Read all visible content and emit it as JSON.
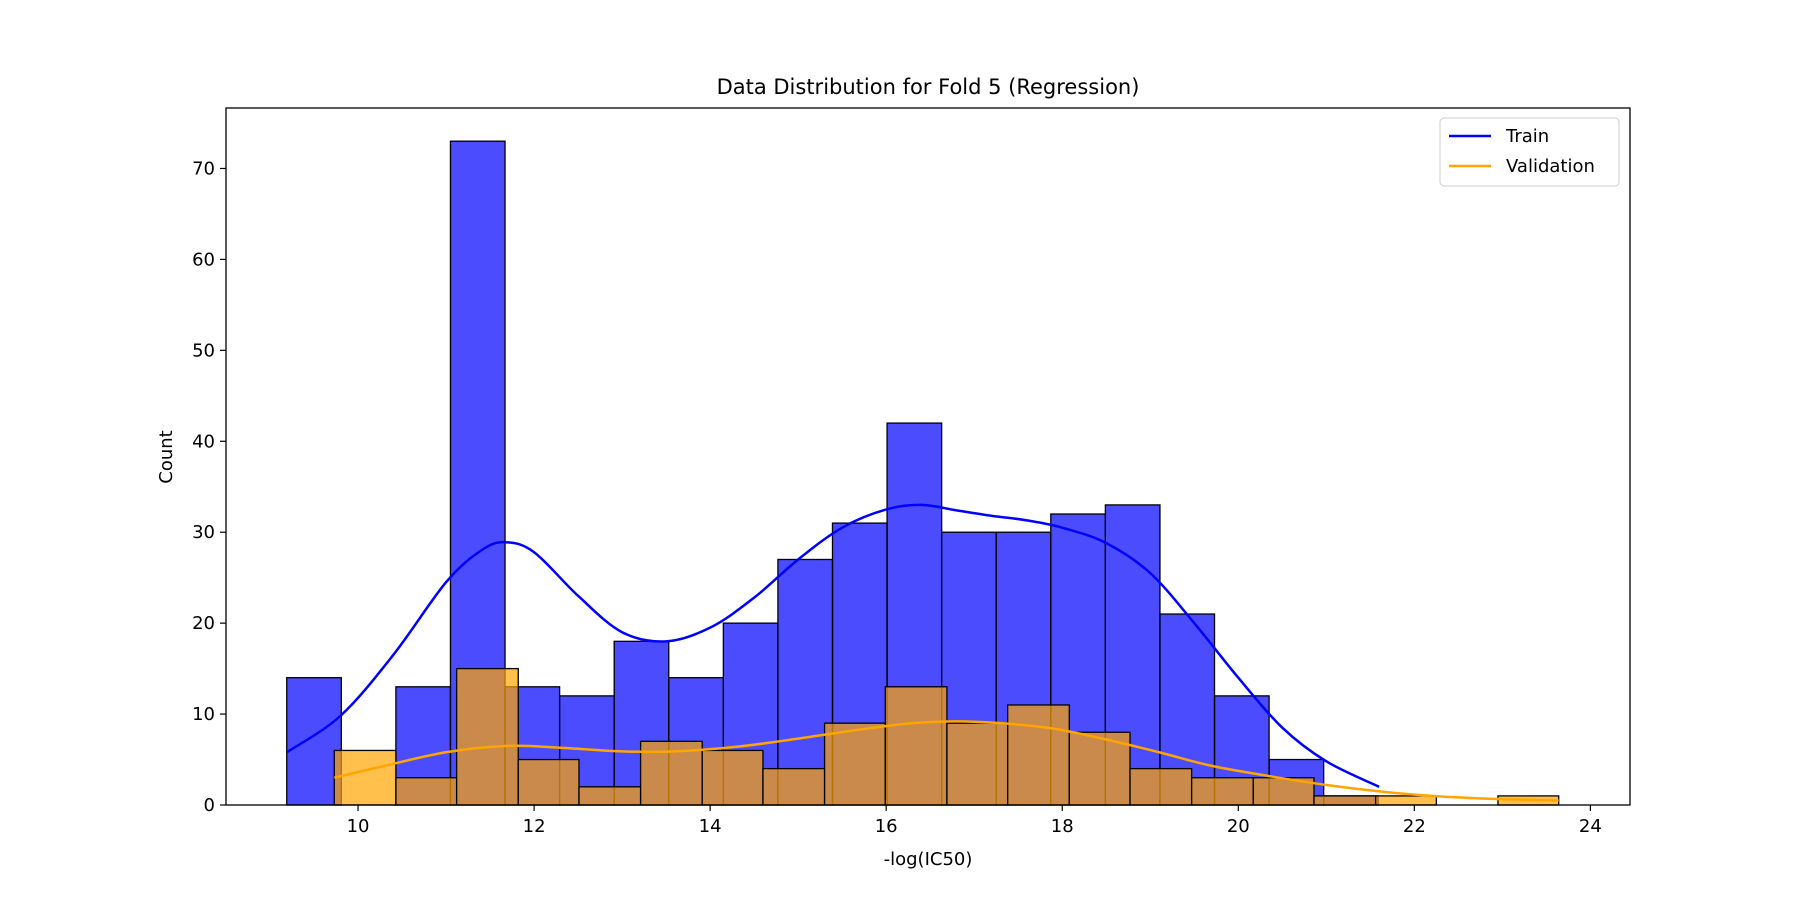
{
  "chart_data": {
    "type": "bar",
    "title": "Data Distribution for Fold 5 (Regression)",
    "xlabel": "-log(IC50)",
    "ylabel": "Count",
    "xlim": [
      8.5,
      24.45
    ],
    "ylim": [
      0,
      76.65
    ],
    "xticks": [
      10,
      12,
      14,
      16,
      18,
      20,
      22,
      24
    ],
    "yticks": [
      0,
      10,
      20,
      30,
      40,
      50,
      60,
      70
    ],
    "grid": false,
    "legend_position": "top-right",
    "legend": [
      "Train",
      "Validation"
    ],
    "series": [
      {
        "name": "Train",
        "kind": "histogram",
        "color": "#0000ff",
        "opacity": 0.7,
        "bin_edges": [
          9.19,
          9.81,
          10.43,
          11.05,
          11.67,
          12.29,
          12.91,
          13.53,
          14.15,
          14.77,
          15.39,
          16.01,
          16.63,
          17.25,
          17.87,
          18.49,
          19.11,
          19.73,
          20.35,
          20.97,
          21.59
        ],
        "counts": [
          14,
          0,
          13,
          73,
          13,
          12,
          18,
          14,
          20,
          27,
          31,
          42,
          30,
          30,
          32,
          33,
          21,
          12,
          5,
          1
        ]
      },
      {
        "name": "Validation",
        "kind": "histogram",
        "color": "#ffa500",
        "opacity": 0.7,
        "bin_edges": [
          9.73,
          10.43,
          11.12,
          11.82,
          12.51,
          13.21,
          13.91,
          14.6,
          15.3,
          15.99,
          16.69,
          17.38,
          18.08,
          18.77,
          19.47,
          20.17,
          20.86,
          21.56,
          22.25,
          22.95,
          23.64
        ],
        "counts": [
          6,
          3,
          15,
          5,
          2,
          7,
          6,
          4,
          9,
          13,
          9,
          11,
          8,
          4,
          3,
          3,
          1,
          1,
          0,
          1
        ]
      },
      {
        "name": "Train",
        "kind": "kde",
        "color": "#0000ff",
        "x": [
          9.19,
          9.8,
          10.4,
          11.0,
          11.4,
          11.67,
          12.0,
          12.5,
          13.0,
          13.5,
          14.0,
          14.5,
          15.0,
          15.5,
          16.0,
          16.4,
          16.8,
          17.2,
          17.6,
          18.0,
          18.5,
          19.0,
          19.5,
          20.0,
          20.5,
          21.0,
          21.6
        ],
        "y": [
          5.8,
          9.8,
          16.5,
          24.5,
          28.0,
          28.9,
          27.8,
          23.0,
          19.0,
          18.0,
          19.5,
          22.8,
          27.0,
          30.5,
          32.5,
          33.0,
          32.4,
          31.8,
          31.3,
          30.5,
          28.8,
          25.5,
          20.0,
          14.0,
          8.5,
          4.8,
          2.0
        ]
      },
      {
        "name": "Validation",
        "kind": "kde",
        "color": "#ffa500",
        "x": [
          9.73,
          10.3,
          11.0,
          11.7,
          12.3,
          13.0,
          13.6,
          14.3,
          15.0,
          15.7,
          16.3,
          16.8,
          17.3,
          17.9,
          18.5,
          19.1,
          19.7,
          20.4,
          21.0,
          21.6,
          22.2,
          22.8,
          23.64
        ],
        "y": [
          3.0,
          4.3,
          5.8,
          6.5,
          6.3,
          5.9,
          5.9,
          6.4,
          7.3,
          8.3,
          9.0,
          9.2,
          9.0,
          8.4,
          7.2,
          5.8,
          4.3,
          3.1,
          2.2,
          1.5,
          1.0,
          0.7,
          0.5
        ]
      }
    ]
  }
}
